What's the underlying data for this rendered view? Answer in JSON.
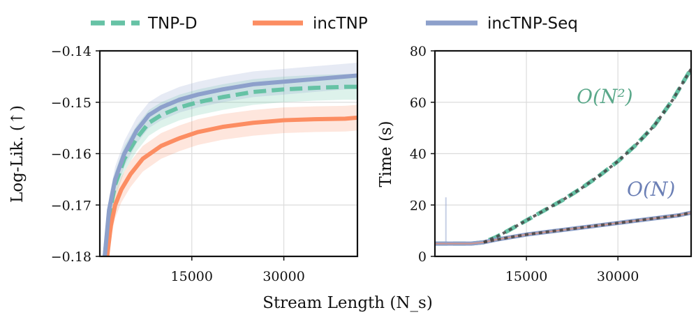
{
  "legend": [
    {
      "name": "TNP-D",
      "color": "#66c2a5",
      "dash": true
    },
    {
      "name": "incTNP",
      "color": "#fc8d62",
      "dash": false
    },
    {
      "name": "incTNP-Seq",
      "color": "#8da0cb",
      "dash": false
    }
  ],
  "xlabel": "Stream Length (N_s)",
  "chart_data": [
    {
      "type": "line",
      "title": "",
      "ylabel": "Log-Lik. (↑)",
      "xlim": [
        0,
        42000
      ],
      "ylim": [
        -0.18,
        -0.14
      ],
      "xticks": [
        15000,
        30000
      ],
      "yticks": [
        -0.18,
        -0.17,
        -0.16,
        -0.15,
        -0.14
      ],
      "ytick_labels": [
        "−0.18",
        "−0.17",
        "−0.16",
        "−0.15",
        "−0.14"
      ],
      "grid": true,
      "series": [
        {
          "name": "TNP-D",
          "color": "#66c2a5",
          "x": [
            800,
            1500,
            2500,
            4000,
            6000,
            8000,
            10000,
            13000,
            16000,
            20000,
            25000,
            30000,
            35000,
            40000,
            42000
          ],
          "values": [
            -0.18,
            -0.172,
            -0.166,
            -0.161,
            -0.157,
            -0.154,
            -0.1525,
            -0.151,
            -0.15,
            -0.149,
            -0.148,
            -0.1475,
            -0.1472,
            -0.147,
            -0.147
          ]
        },
        {
          "name": "incTNP",
          "color": "#fc8d62",
          "x": [
            1200,
            1800,
            2500,
            3500,
            5000,
            7000,
            10000,
            13000,
            16000,
            20000,
            25000,
            30000,
            35000,
            40000,
            42000
          ],
          "values": [
            -0.18,
            -0.174,
            -0.17,
            -0.167,
            -0.164,
            -0.161,
            -0.1585,
            -0.157,
            -0.1558,
            -0.1548,
            -0.154,
            -0.1535,
            -0.1533,
            -0.1532,
            -0.153
          ]
        },
        {
          "name": "incTNP-Seq",
          "color": "#8da0cb",
          "x": [
            800,
            1500,
            2500,
            4000,
            6000,
            8000,
            10000,
            13000,
            16000,
            20000,
            25000,
            30000,
            35000,
            40000,
            42000
          ],
          "values": [
            -0.18,
            -0.171,
            -0.165,
            -0.16,
            -0.1555,
            -0.1525,
            -0.151,
            -0.1495,
            -0.1485,
            -0.1475,
            -0.1465,
            -0.146,
            -0.1455,
            -0.145,
            -0.1448
          ]
        }
      ]
    },
    {
      "type": "line",
      "title": "",
      "ylabel": "Time (s)",
      "xlim": [
        0,
        42000
      ],
      "ylim": [
        0,
        80
      ],
      "xticks": [
        15000,
        30000
      ],
      "yticks": [
        0,
        20,
        40,
        60,
        80
      ],
      "grid": true,
      "annotations": [
        {
          "text": "O(N²)",
          "color": "#5aa88a"
        },
        {
          "text": "O(N)",
          "color": "#6b7fb5"
        }
      ],
      "series": [
        {
          "name": "TNP-D",
          "color": "#66c2a5",
          "x": [
            0,
            3000,
            6000,
            8000,
            10000,
            12000,
            15000,
            18000,
            21000,
            24000,
            27000,
            30000,
            33000,
            36000,
            39000,
            42000
          ],
          "values": [
            5,
            5,
            5,
            5.5,
            7.5,
            10,
            14,
            18,
            22,
            26.5,
            31.5,
            37,
            43.5,
            51,
            61,
            73
          ]
        },
        {
          "name": "incTNP-Seq",
          "color": "#8da0cb",
          "x": [
            0,
            3000,
            6000,
            8000,
            10000,
            15000,
            20000,
            25000,
            30000,
            35000,
            40000,
            42000
          ],
          "values": [
            5,
            5,
            5,
            5.5,
            6.5,
            8.5,
            10,
            11.5,
            13,
            14.5,
            16,
            17
          ]
        },
        {
          "name": "incTNP",
          "color": "#fc8d62",
          "x": [
            0,
            3000,
            6000,
            8000,
            10000,
            15000,
            20000,
            25000,
            30000,
            35000,
            40000,
            42000
          ],
          "values": [
            5,
            5,
            5,
            5.5,
            6.5,
            8.5,
            10,
            11.5,
            13,
            14.5,
            16,
            17
          ]
        }
      ]
    }
  ]
}
